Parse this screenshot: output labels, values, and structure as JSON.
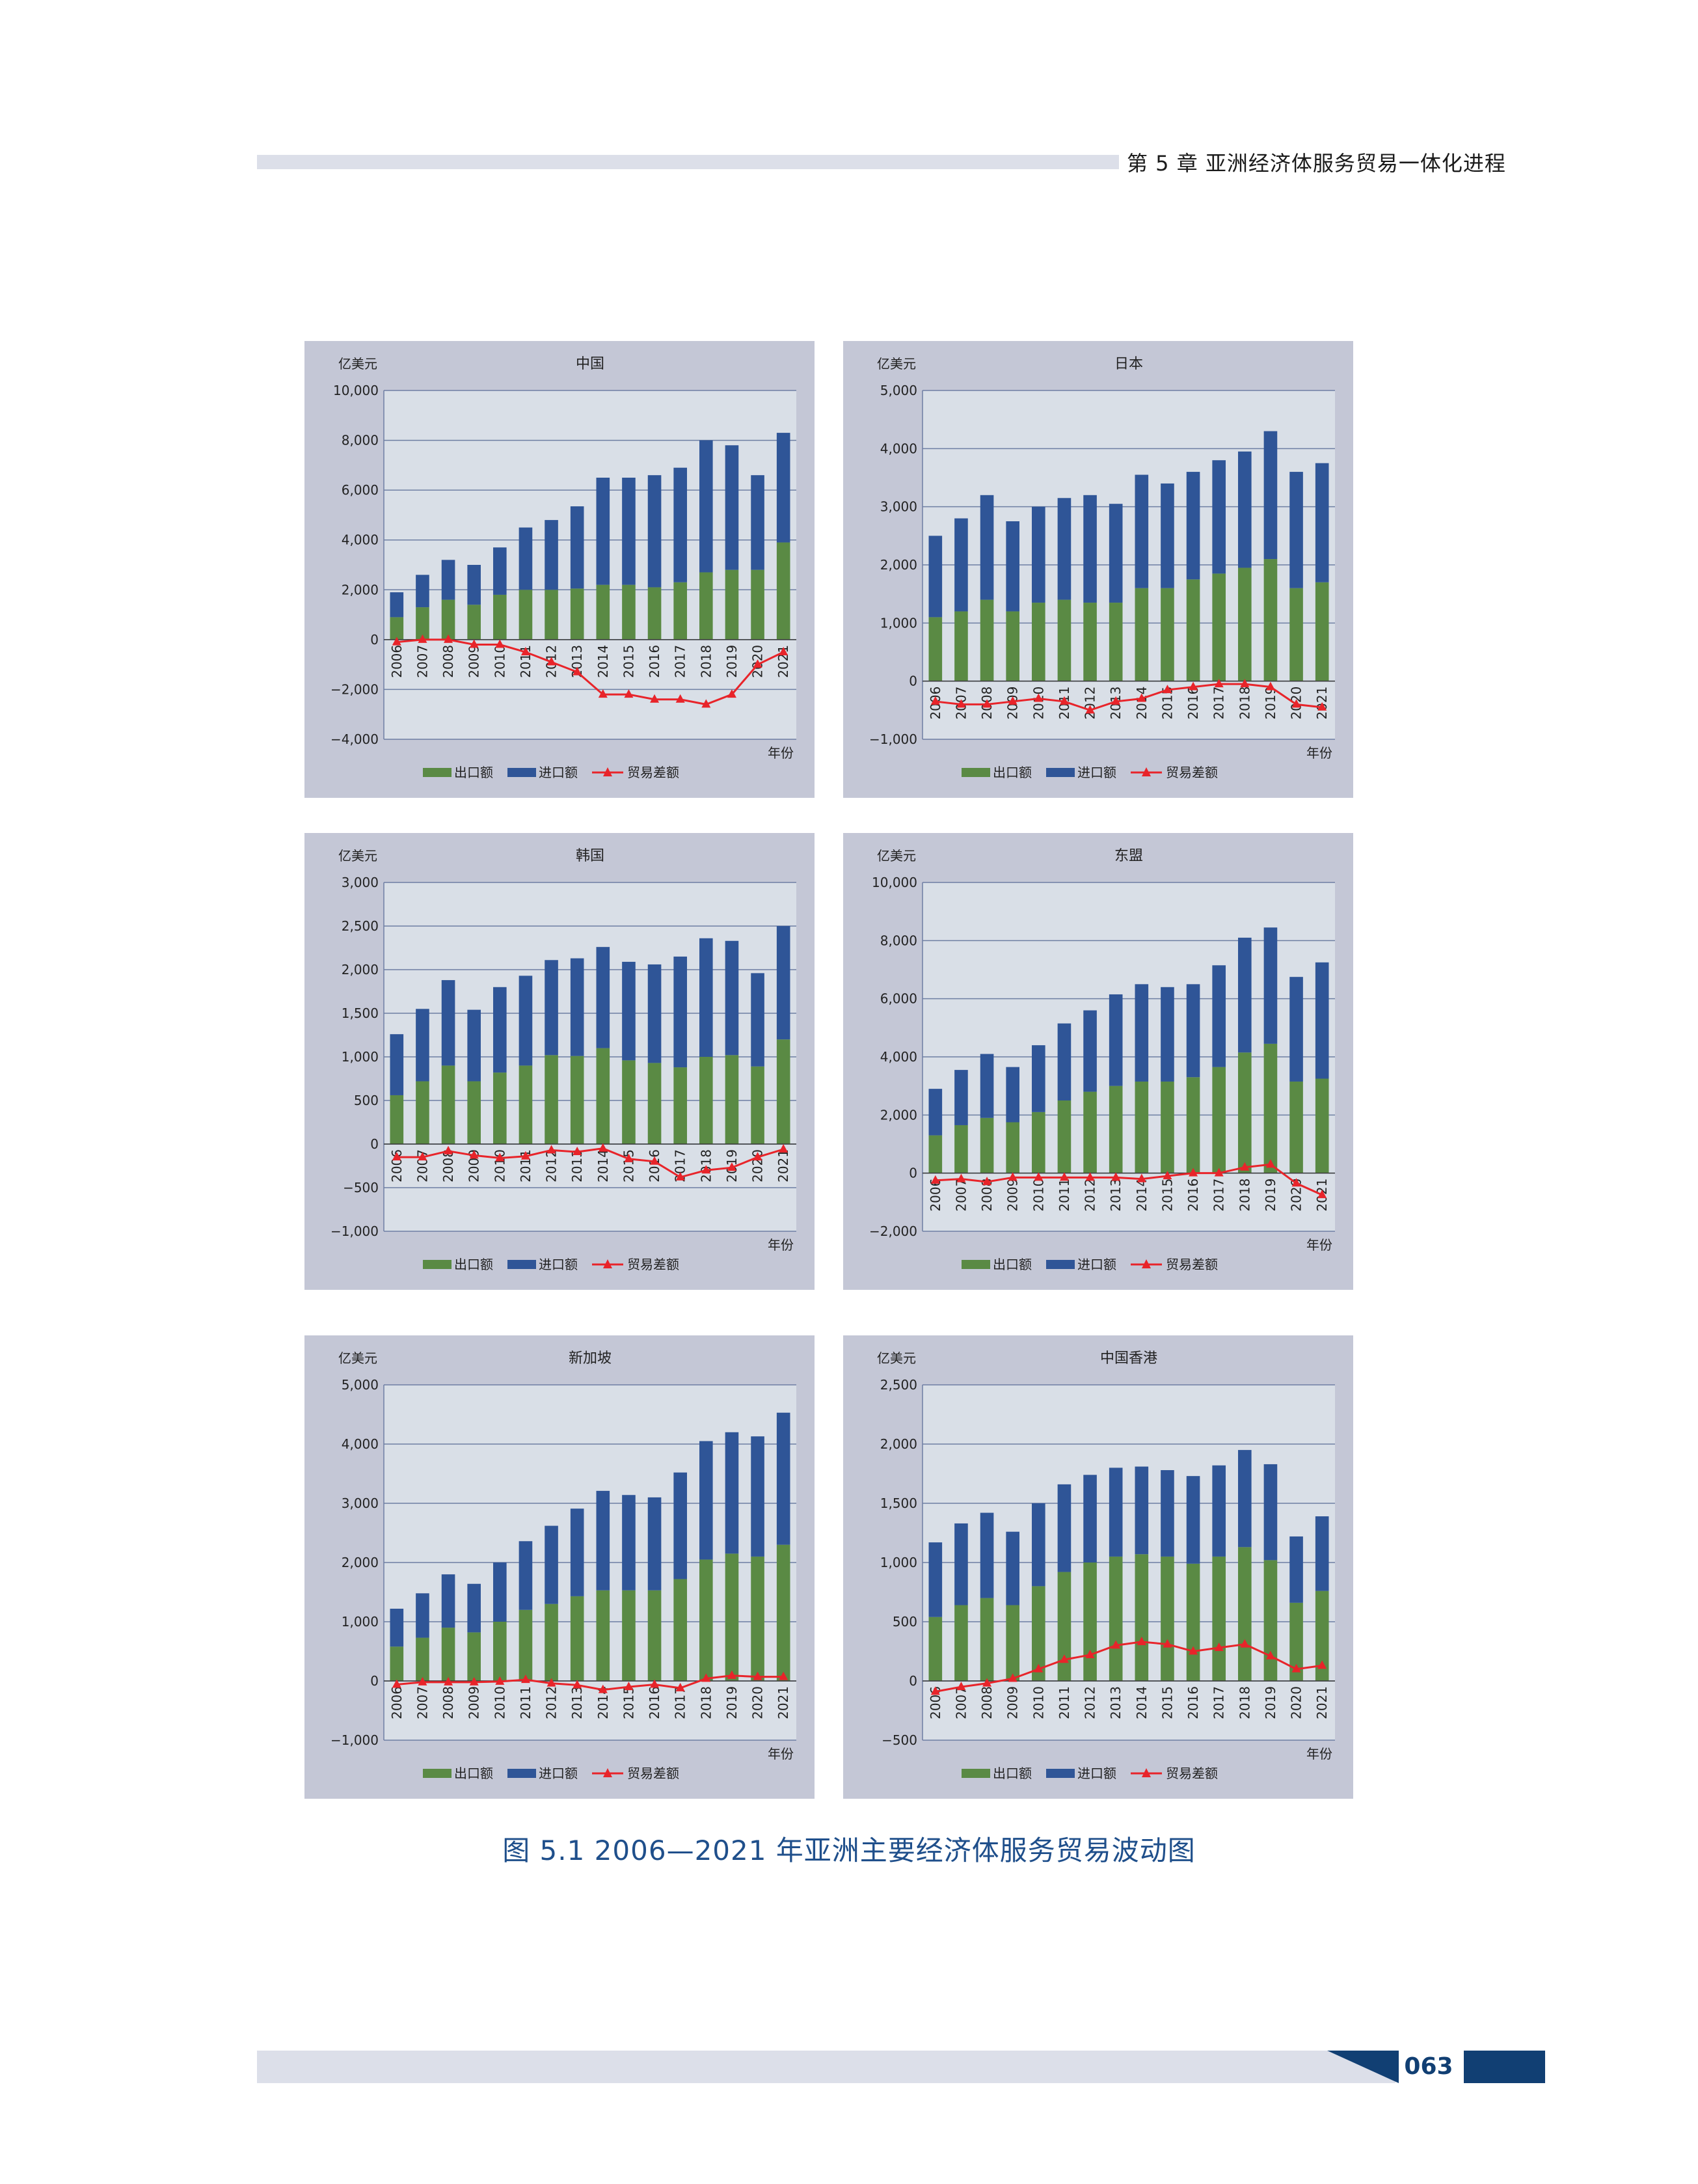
{
  "header": {
    "chapter": "第 5 章   亚洲经济体服务贸易一体化进程"
  },
  "caption": "图 5.1    2006—2021 年亚洲主要经济体服务贸易波动图",
  "page_number": "063",
  "colors": {
    "export": "#5a8a44",
    "import": "#2f5597",
    "balance": "#e8242a",
    "plot_bg": "#d9dfe7",
    "panel_bg": "#c4c7d6"
  },
  "legend": {
    "export": "出口额",
    "import": "进口额",
    "balance": "贸易差额"
  },
  "chart_data": [
    {
      "type": "bar",
      "title": "中国",
      "ylabel": "亿美元",
      "xlabel": "年份",
      "ylim": [
        -4000,
        10000
      ],
      "yticks": [
        -4000,
        -2000,
        0,
        2000,
        4000,
        6000,
        8000,
        10000
      ],
      "categories": [
        "2006",
        "2007",
        "2008",
        "2009",
        "2010",
        "2011",
        "2012",
        "2013",
        "2014",
        "2015",
        "2016",
        "2017",
        "2018",
        "2019",
        "2020",
        "2021"
      ],
      "series": [
        {
          "name": "出口额",
          "values": [
            900,
            1300,
            1600,
            1400,
            1800,
            2000,
            2000,
            2050,
            2200,
            2200,
            2100,
            2300,
            2700,
            2800,
            2800,
            3900
          ]
        },
        {
          "name": "进口额",
          "values": [
            1000,
            1300,
            1600,
            1600,
            1900,
            2500,
            2800,
            3300,
            4300,
            4300,
            4500,
            4600,
            5300,
            5000,
            3800,
            4400
          ]
        },
        {
          "name": "贸易差额",
          "values": [
            -100,
            0,
            0,
            -200,
            -200,
            -500,
            -900,
            -1300,
            -2200,
            -2200,
            -2400,
            -2400,
            -2600,
            -2200,
            -1000,
            -500
          ]
        }
      ]
    },
    {
      "type": "bar",
      "title": "日本",
      "ylabel": "亿美元",
      "xlabel": "年份",
      "ylim": [
        -1000,
        5000
      ],
      "yticks": [
        -1000,
        0,
        1000,
        2000,
        3000,
        4000,
        5000
      ],
      "categories": [
        "2006",
        "2007",
        "2008",
        "2009",
        "2010",
        "2011",
        "2012",
        "2013",
        "2014",
        "2015",
        "2016",
        "2017",
        "2018",
        "2019",
        "2020",
        "2021"
      ],
      "series": [
        {
          "name": "出口额",
          "values": [
            1100,
            1200,
            1400,
            1200,
            1350,
            1400,
            1350,
            1350,
            1600,
            1600,
            1750,
            1850,
            1950,
            2100,
            1600,
            1700
          ]
        },
        {
          "name": "进口额",
          "values": [
            1400,
            1600,
            1800,
            1550,
            1650,
            1750,
            1850,
            1700,
            1950,
            1800,
            1850,
            1950,
            2000,
            2200,
            2000,
            2050
          ]
        },
        {
          "name": "贸易差额",
          "values": [
            -350,
            -400,
            -400,
            -350,
            -300,
            -350,
            -500,
            -350,
            -300,
            -150,
            -100,
            -50,
            -50,
            -100,
            -400,
            -450
          ]
        }
      ]
    },
    {
      "type": "bar",
      "title": "韩国",
      "ylabel": "亿美元",
      "xlabel": "年份",
      "ylim": [
        -1000,
        3000
      ],
      "yticks": [
        -1000,
        -500,
        0,
        500,
        1000,
        1500,
        2000,
        2500,
        3000
      ],
      "categories": [
        "2006",
        "2007",
        "2008",
        "2009",
        "2010",
        "2011",
        "2012",
        "2013",
        "2014",
        "2015",
        "2016",
        "2017",
        "2018",
        "2019",
        "2020",
        "2021"
      ],
      "series": [
        {
          "name": "出口额",
          "values": [
            560,
            720,
            900,
            720,
            820,
            900,
            1020,
            1010,
            1100,
            960,
            930,
            880,
            1000,
            1020,
            890,
            1200
          ]
        },
        {
          "name": "进口额",
          "values": [
            700,
            830,
            980,
            820,
            980,
            1030,
            1090,
            1120,
            1160,
            1130,
            1130,
            1270,
            1360,
            1310,
            1070,
            1300
          ]
        },
        {
          "name": "贸易差额",
          "values": [
            -150,
            -150,
            -80,
            -130,
            -160,
            -140,
            -70,
            -90,
            -50,
            -170,
            -200,
            -380,
            -300,
            -270,
            -150,
            -60
          ]
        }
      ]
    },
    {
      "type": "bar",
      "title": "东盟",
      "ylabel": "亿美元",
      "xlabel": "年份",
      "ylim": [
        -2000,
        10000
      ],
      "yticks": [
        -2000,
        0,
        2000,
        4000,
        6000,
        8000,
        10000
      ],
      "categories": [
        "2006",
        "2007",
        "2008",
        "2009",
        "2010",
        "2011",
        "2012",
        "2013",
        "2014",
        "2015",
        "2016",
        "2017",
        "2018",
        "2019",
        "2020",
        "2021"
      ],
      "series": [
        {
          "name": "出口额",
          "values": [
            1300,
            1650,
            1900,
            1750,
            2100,
            2500,
            2800,
            3000,
            3150,
            3150,
            3300,
            3650,
            4150,
            4450,
            3150,
            3250
          ]
        },
        {
          "name": "进口额",
          "values": [
            1600,
            1900,
            2200,
            1900,
            2300,
            2650,
            2800,
            3150,
            3350,
            3250,
            3200,
            3500,
            3950,
            4000,
            3600,
            4000
          ]
        },
        {
          "name": "贸易差额",
          "values": [
            -250,
            -200,
            -300,
            -150,
            -150,
            -150,
            -150,
            -150,
            -200,
            -100,
            0,
            0,
            200,
            300,
            -350,
            -750
          ]
        }
      ]
    },
    {
      "type": "bar",
      "title": "新加坡",
      "ylabel": "亿美元",
      "xlabel": "年份",
      "ylim": [
        -1000,
        5000
      ],
      "yticks": [
        -1000,
        0,
        1000,
        2000,
        3000,
        4000,
        5000
      ],
      "categories": [
        "2006",
        "2007",
        "2008",
        "2009",
        "2010",
        "2011",
        "2012",
        "2013",
        "2014",
        "2015",
        "2016",
        "2017",
        "2018",
        "2019",
        "2020",
        "2021"
      ],
      "series": [
        {
          "name": "出口额",
          "values": [
            580,
            730,
            900,
            820,
            1000,
            1200,
            1300,
            1430,
            1530,
            1530,
            1530,
            1720,
            2050,
            2150,
            2100,
            2300
          ]
        },
        {
          "name": "进口额",
          "values": [
            640,
            750,
            900,
            820,
            1000,
            1160,
            1320,
            1480,
            1680,
            1610,
            1570,
            1800,
            2000,
            2050,
            2030,
            2230
          ]
        },
        {
          "name": "贸易差额",
          "values": [
            -60,
            -20,
            -20,
            -20,
            -10,
            20,
            -40,
            -70,
            -150,
            -100,
            -60,
            -120,
            40,
            90,
            70,
            70
          ]
        }
      ]
    },
    {
      "type": "bar",
      "title": "中国香港",
      "ylabel": "亿美元",
      "xlabel": "年份",
      "ylim": [
        -500,
        2500
      ],
      "yticks": [
        -500,
        0,
        500,
        1000,
        1500,
        2000,
        2500
      ],
      "categories": [
        "2006",
        "2007",
        "2008",
        "2009",
        "2010",
        "2011",
        "2012",
        "2013",
        "2014",
        "2015",
        "2016",
        "2017",
        "2018",
        "2019",
        "2020",
        "2021"
      ],
      "series": [
        {
          "name": "出口额",
          "values": [
            540,
            640,
            700,
            640,
            800,
            920,
            1000,
            1050,
            1070,
            1050,
            990,
            1050,
            1130,
            1020,
            660,
            760
          ]
        },
        {
          "name": "进口额",
          "values": [
            630,
            690,
            720,
            620,
            700,
            740,
            740,
            750,
            740,
            730,
            740,
            770,
            820,
            810,
            560,
            630
          ]
        },
        {
          "name": "贸易差额",
          "values": [
            -90,
            -50,
            -20,
            20,
            100,
            180,
            220,
            300,
            330,
            310,
            250,
            280,
            310,
            210,
            100,
            130
          ]
        }
      ]
    }
  ]
}
